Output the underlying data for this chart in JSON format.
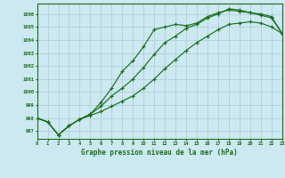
{
  "background_color": "#cce8f0",
  "grid_color": "#aaccd8",
  "line_color": "#1a6e1a",
  "text_color": "#1a6e1a",
  "xlabel": "Graphe pression niveau de la mer (hPa)",
  "ylim": [
    996.4,
    1006.8
  ],
  "xlim": [
    0,
    23
  ],
  "yticks": [
    997,
    998,
    999,
    1000,
    1001,
    1002,
    1003,
    1004,
    1005,
    1006
  ],
  "xticks": [
    0,
    1,
    2,
    3,
    4,
    5,
    6,
    7,
    8,
    9,
    10,
    11,
    12,
    13,
    14,
    15,
    16,
    17,
    18,
    19,
    20,
    21,
    22,
    23
  ],
  "series1_y": [
    998.0,
    997.7,
    996.7,
    997.4,
    997.9,
    998.3,
    999.2,
    1000.3,
    1001.6,
    1002.4,
    1003.5,
    1004.8,
    1005.0,
    1005.2,
    1005.1,
    1005.3,
    1005.8,
    1006.1,
    1006.3,
    1006.2,
    1006.1,
    1005.9,
    1005.7,
    1004.5
  ],
  "series2_y": [
    998.0,
    997.7,
    996.7,
    997.4,
    997.9,
    998.3,
    998.9,
    999.7,
    1000.3,
    1001.0,
    1001.9,
    1002.9,
    1003.8,
    1004.3,
    1004.9,
    1005.2,
    1005.7,
    1006.0,
    1006.4,
    1006.3,
    1006.1,
    1006.0,
    1005.8,
    1004.5
  ],
  "series3_y": [
    998.0,
    997.7,
    996.7,
    997.4,
    997.9,
    998.2,
    998.5,
    998.9,
    999.3,
    999.7,
    1000.3,
    1001.0,
    1001.8,
    1002.5,
    1003.2,
    1003.8,
    1004.3,
    1004.8,
    1005.2,
    1005.3,
    1005.4,
    1005.3,
    1005.0,
    1004.5
  ]
}
